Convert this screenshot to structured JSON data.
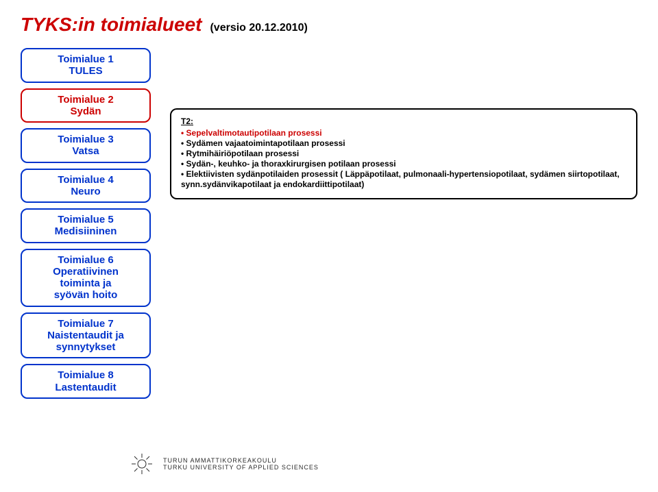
{
  "title": {
    "main": "TYKS:in toimialueet",
    "version": "(versio 20.12.2010)",
    "main_color": "#cc0000",
    "version_color": "#000000",
    "main_fontsize": 28,
    "version_fontsize": 16
  },
  "left_boxes": [
    {
      "id": "t1",
      "lines": [
        "Toimialue 1",
        "TULES"
      ],
      "border": "#0033cc",
      "text": "#0033cc",
      "fontsize": 15
    },
    {
      "id": "t2",
      "lines": [
        "Toimialue 2",
        "Sydän"
      ],
      "border": "#cc0000",
      "text": "#cc0000",
      "fontsize": 15
    },
    {
      "id": "t3",
      "lines": [
        "Toimialue 3",
        "Vatsa"
      ],
      "border": "#0033cc",
      "text": "#0033cc",
      "fontsize": 15
    },
    {
      "id": "t4",
      "lines": [
        "Toimialue 4",
        "Neuro"
      ],
      "border": "#0033cc",
      "text": "#0033cc",
      "fontsize": 15
    },
    {
      "id": "t5",
      "lines": [
        "Toimialue 5",
        "Medisiininen"
      ],
      "border": "#0033cc",
      "text": "#0033cc",
      "fontsize": 15
    },
    {
      "id": "t6",
      "lines": [
        "Toimialue 6",
        "Operatiivinen",
        "toiminta ja",
        "syövän hoito"
      ],
      "border": "#0033cc",
      "text": "#0033cc",
      "fontsize": 15
    },
    {
      "id": "t7",
      "lines": [
        "Toimialue 7",
        "Naistentaudit ja",
        "synnytykset"
      ],
      "border": "#0033cc",
      "text": "#0033cc",
      "fontsize": 15
    },
    {
      "id": "t8",
      "lines": [
        "Toimialue 8",
        "Lastentaudit"
      ],
      "border": "#0033cc",
      "text": "#0033cc",
      "fontsize": 15
    }
  ],
  "callout": {
    "head": "T2:",
    "head_color": "#000000",
    "first_item": {
      "text": "Sepelvaltimotautipotilaan prosessi",
      "color": "#cc0000"
    },
    "items": [
      "Sydämen vajaatoimintapotilaan prosessi",
      "Rytmihäiriöpotilaan prosessi",
      "Sydän-, keuhko- ja thoraxkirurgisen potilaan prosessi",
      "Elektiivisten sydänpotilaiden prosessit ( Läppäpotilaat, pulmonaali-hypertensiopotilaat, sydämen siirtopotilaat, synn.sydänvikapotilaat ja endokardiittipotilaat)"
    ],
    "border_color": "#000000",
    "text_color": "#000000",
    "fontsize": 12
  },
  "footer": {
    "line1": "TURUN AMMATTIKORKEAKOULU",
    "line2": "TURKU UNIVERSITY OF APPLIED SCIENCES",
    "text_color": "#2a2a2a",
    "logo_stroke": "#2a2a2a"
  }
}
